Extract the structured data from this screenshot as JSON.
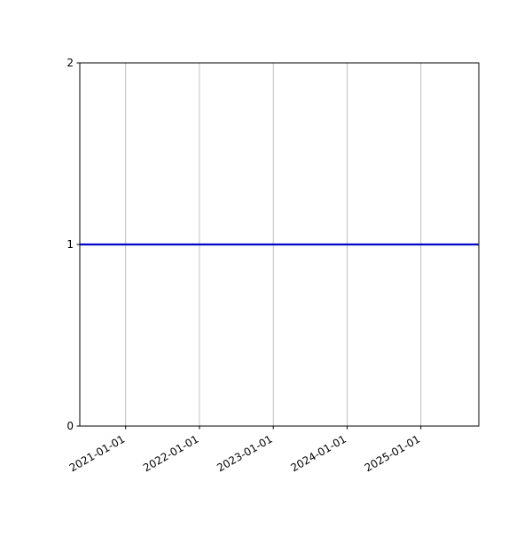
{
  "chart_data": {
    "type": "line",
    "title": "",
    "xlabel": "",
    "ylabel": "",
    "x_tick_labels": [
      "2021-01-01",
      "2022-01-01",
      "2023-01-01",
      "2024-01-01",
      "2025-01-01"
    ],
    "y_tick_labels": [
      "0",
      "1",
      "2"
    ],
    "y_ticks": [
      0,
      1,
      2
    ],
    "ylim": [
      0,
      2
    ],
    "series": [
      {
        "name": "",
        "constant_value": 1,
        "color": "#0000cc",
        "line_width": 2.3,
        "spans_full_width": true
      }
    ],
    "grid": {
      "vertical": true,
      "horizontal": false,
      "color": "#b0b0b0"
    },
    "legend": "none",
    "background": "#ffffff",
    "x_tick_rotation_deg": 30,
    "axis_color": "#000000"
  }
}
